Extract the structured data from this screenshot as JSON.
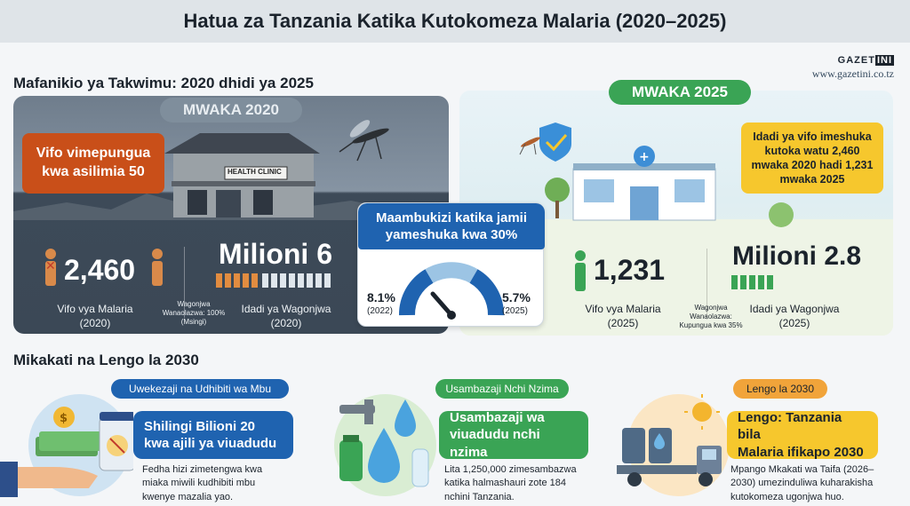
{
  "title": "Hatua za Tanzania Katika Kutokomeza Malaria (2020–2025)",
  "brand": {
    "logo_left": "GAZET",
    "logo_box": "INI",
    "url": "www.gazetini.co.tz"
  },
  "overview": {
    "heading": "Mafanikio ya Takwimu: 2020 dhidi ya 2025",
    "year2020": {
      "pill": "MWAKA 2020",
      "callout_line1": "Vifo vimepungua",
      "callout_line2": "kwa asilimia 50",
      "clinic_sign": "HEALTH CLINIC",
      "deaths_value": "2,460",
      "deaths_label": "Vifo vya Malaria",
      "deaths_year": "(2020)",
      "patients_value": "Milioni 6",
      "patients_label": "Idadi ya Wagonjwa",
      "patients_year": "(2020)",
      "note_line1": "Wagonjwa",
      "note_line2": "Wanaolazwa: 100%",
      "note_line3": "(Msingi)"
    },
    "gauge": {
      "heading_line1": "Maambukizi katika jamii",
      "heading_line2": "yameshuka kwa 30%",
      "left_value": "8.1%",
      "left_year": "(2022)",
      "right_value": "5.7%",
      "right_year": "(2025)"
    },
    "year2025": {
      "pill": "MWAKA 2025",
      "callout": "Idadi ya vifo imeshuka kutoka watu 2,460 mwaka 2020 hadi 1,231 mwaka 2025",
      "deaths_value": "1,231",
      "deaths_label": "Vifo vya Malaria",
      "deaths_year": "(2025)",
      "patients_value": "Milioni 2.8",
      "patients_label": "Idadi ya Wagonjwa",
      "patients_year": "(2025)",
      "note_line1": "Wagonjwa",
      "note_line2": "Wanaolazwa:",
      "note_line3": "Kupungua kwa 35%"
    }
  },
  "strategies": {
    "heading": "Mikakati na Lengo la 2030",
    "cards": [
      {
        "tag": "Uwekezaji na Udhibiti wa Mbu",
        "banner_line1": "Shilingi Bilioni 20",
        "banner_line2": "kwa ajili ya viuadudu",
        "desc_line1": "Fedha hizi zimetengwa kwa",
        "desc_line2": "miaka miwili kudhibiti mbu",
        "desc_line3": "kwenye mazalia yao."
      },
      {
        "tag": "Usambazaji Nchi Nzima",
        "banner_line1": "Usambazaji wa",
        "banner_line2": "viuadudu nchi nzima",
        "desc_line1": "Lita 1,250,000 zimesambazwa",
        "desc_line2": "katika halmashauri zote 184",
        "desc_line3": "nchini Tanzania."
      },
      {
        "tag": "Lengo la 2030",
        "banner_line1": "Lengo: Tanzania bila",
        "banner_line2": "Malaria ifikapo 2030",
        "desc_line1": "Mpango Mkakati wa Taifa (2026–",
        "desc_line2": "2030) umezinduliwa kuharakisha",
        "desc_line3": "kutokomeza ugonjwa huo."
      }
    ]
  },
  "colors": {
    "blue": "#1f63b0",
    "green": "#3aa455",
    "orange": "#c94f19",
    "yellow": "#f6c72d"
  }
}
